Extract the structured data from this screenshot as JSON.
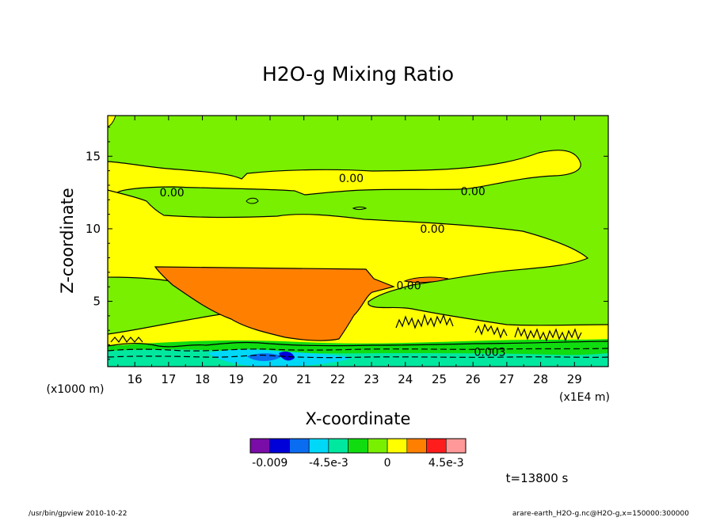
{
  "chart_data": {
    "type": "contour",
    "title": "H2O-g Mixing Ratio",
    "xlabel": "X-coordinate",
    "ylabel": "Z-coordinate",
    "x_unit_left": "(x1000 m)",
    "x_unit_right": "(x1E4 m)",
    "xlim": [
      15.2,
      30.0
    ],
    "ylim": [
      0.5,
      17.8
    ],
    "x_ticks": [
      "16",
      "17",
      "18",
      "19",
      "20",
      "21",
      "22",
      "23",
      "24",
      "25",
      "26",
      "27",
      "28",
      "29"
    ],
    "x_tick_values": [
      16,
      17,
      18,
      19,
      20,
      21,
      22,
      23,
      24,
      25,
      26,
      27,
      28,
      29
    ],
    "y_ticks": [
      "5",
      "10",
      "15"
    ],
    "y_tick_values": [
      5,
      10,
      15
    ],
    "contour_labels": [
      {
        "text": "0.00",
        "x": 22.4,
        "z": 13.5
      },
      {
        "text": "0.00",
        "x": 17.1,
        "z": 12.5
      },
      {
        "text": "0.00",
        "x": 26.0,
        "z": 12.6
      },
      {
        "text": "0.00",
        "x": 24.8,
        "z": 10.0
      },
      {
        "text": "0.00",
        "x": 24.1,
        "z": 6.1
      },
      {
        "text": "0.003",
        "x": 26.5,
        "z": 1.5
      }
    ],
    "colorbar": {
      "colors": [
        "#7a0ca8",
        "#0000d8",
        "#0a6cf0",
        "#00d8f8",
        "#00e8a0",
        "#10dc10",
        "#78f000",
        "#ffff00",
        "#ff8000",
        "#ff1c1c",
        "#ff9898"
      ],
      "tick_labels": [
        "-0.009",
        "-4.5e-3",
        "0",
        "4.5e-3"
      ]
    },
    "time_label": "t=13800 s"
  },
  "footer": {
    "left": "/usr/bin/gpview  2010-10-22",
    "right": "arare-earth_H2O-g.nc@H2O-g,x=150000:300000"
  }
}
